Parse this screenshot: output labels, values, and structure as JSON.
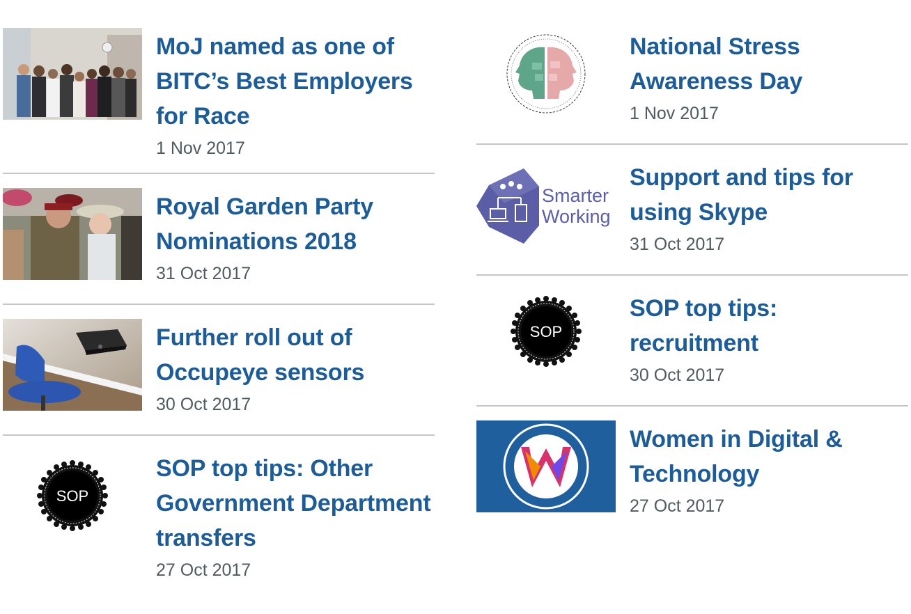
{
  "left_column": {
    "items": [
      {
        "title": "MoJ named as one of BITC’s Best Employers for Race",
        "date": "1 Nov 2017",
        "image": "group-photo-image"
      },
      {
        "title": "Royal Garden Party Nominations 2018",
        "date": "31 Oct 2017",
        "image": "garden-party-photo-image"
      },
      {
        "title": "Further roll out of Occupeye sensors",
        "date": "30 Oct 2017",
        "image": "desk-sensor-photo-image"
      },
      {
        "title": "SOP top tips: Other Government Department transfers",
        "date": "27 Oct 2017",
        "image": "sop-badge-image",
        "badge_text": "SOP"
      }
    ]
  },
  "right_column": {
    "items": [
      {
        "title": "National Stress Awareness Day",
        "date": "1 Nov 2017",
        "image": "mental-health-heads-logo"
      },
      {
        "title": "Support and tips for using Skype",
        "date": "31 Oct 2017",
        "image": "smarter-working-logo",
        "logo_line1": "Smarter",
        "logo_line2": "Working"
      },
      {
        "title": "SOP top tips: recruitment",
        "date": "30 Oct 2017",
        "image": "sop-badge-image",
        "badge_text": "SOP"
      },
      {
        "title": "Women in Digital & Technology",
        "date": "27 Oct 2017",
        "image": "women-in-digital-logo",
        "badge_text": "W"
      }
    ]
  },
  "colors": {
    "link": "#1d5c97",
    "date": "#505a5f",
    "divider": "#c6c6c6",
    "wid_blue": "#1f5f9e",
    "smarter_purple": "#5b5ea6"
  }
}
